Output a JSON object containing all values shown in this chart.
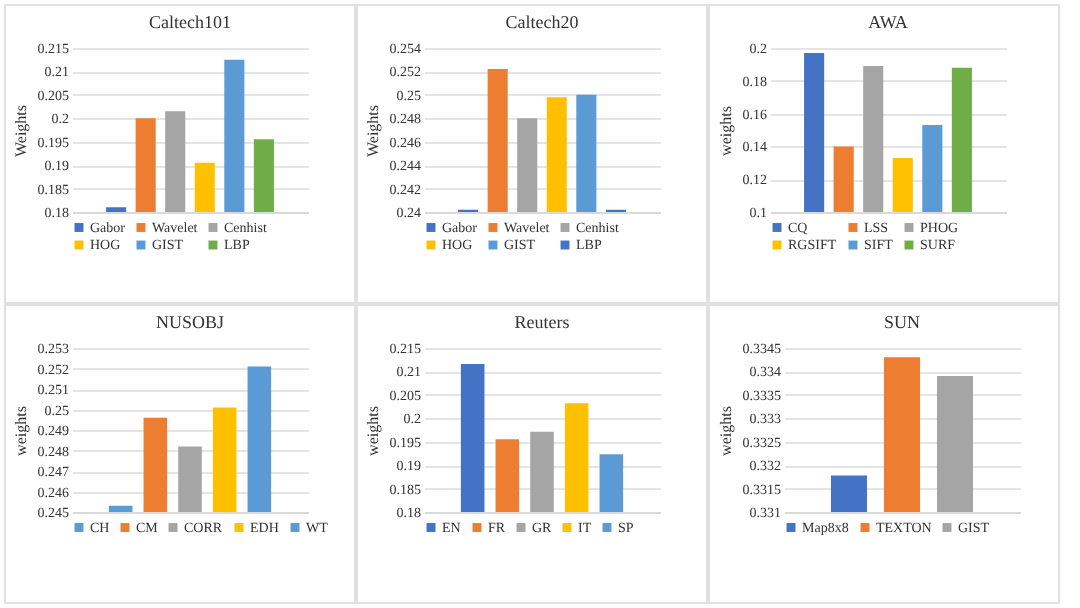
{
  "chart_data": [
    {
      "type": "bar",
      "title": "Caltech101",
      "ylabel": "Weights",
      "categories": [
        null
      ],
      "series": [
        {
          "name": "Gabor",
          "color": "#4472c4",
          "values": [
            0.181
          ]
        },
        {
          "name": "Wavelet",
          "color": "#ed7d31",
          "values": [
            0.2
          ]
        },
        {
          "name": "Cenhist",
          "color": "#a5a5a5",
          "values": [
            0.2015
          ]
        },
        {
          "name": "HOG",
          "color": "#ffc000",
          "values": [
            0.1905
          ]
        },
        {
          "name": "GIST",
          "color": "#5b9bd5",
          "values": [
            0.2125
          ]
        },
        {
          "name": "LBP",
          "color": "#70ad47",
          "values": [
            0.1955
          ]
        }
      ],
      "ylim": [
        0.18,
        0.215
      ],
      "yticks": [
        0.18,
        0.185,
        0.19,
        0.195,
        0.2,
        0.205,
        0.21,
        0.215
      ],
      "grid": "y",
      "legend": "bottom",
      "tick_labels": "y"
    },
    {
      "type": "bar",
      "title": "Caltech20",
      "ylabel": "Weights",
      "categories": [
        null
      ],
      "series": [
        {
          "name": "Gabor",
          "color": "#4472c4",
          "values": [
            0.2402
          ]
        },
        {
          "name": "Wavelet",
          "color": "#ed7d31",
          "values": [
            0.2522
          ]
        },
        {
          "name": "Cenhist",
          "color": "#a5a5a5",
          "values": [
            0.248
          ]
        },
        {
          "name": "HOG",
          "color": "#ffc000",
          "values": [
            0.2498
          ]
        },
        {
          "name": "GIST",
          "color": "#5b9bd5",
          "values": [
            0.25
          ]
        },
        {
          "name": "LBP",
          "color": "#4472c4",
          "values": [
            0.2402
          ]
        }
      ],
      "ylim": [
        0.24,
        0.254
      ],
      "yticks": [
        0.24,
        0.242,
        0.244,
        0.246,
        0.248,
        0.25,
        0.252,
        0.254
      ],
      "grid": "y",
      "legend": "bottom",
      "tick_labels": "y"
    },
    {
      "type": "bar",
      "title": "AWA",
      "ylabel": "weights",
      "categories": [
        null
      ],
      "series": [
        {
          "name": "CQ",
          "color": "#4472c4",
          "values": [
            0.197
          ]
        },
        {
          "name": "LSS",
          "color": "#ed7d31",
          "values": [
            0.14
          ]
        },
        {
          "name": "PHOG",
          "color": "#a5a5a5",
          "values": [
            0.189
          ]
        },
        {
          "name": "RGSIFT",
          "color": "#ffc000",
          "values": [
            0.133
          ]
        },
        {
          "name": "SIFT",
          "color": "#5b9bd5",
          "values": [
            0.153
          ]
        },
        {
          "name": "SURF",
          "color": "#70ad47",
          "values": [
            0.188
          ]
        }
      ],
      "ylim": [
        0.1,
        0.2
      ],
      "yticks": [
        0.1,
        0.12,
        0.14,
        0.16,
        0.18,
        0.2
      ],
      "grid": "y",
      "legend": "bottom",
      "tick_labels": "y"
    },
    {
      "type": "bar",
      "title": "NUSOBJ",
      "ylabel": "weights",
      "categories": [
        null
      ],
      "series": [
        {
          "name": "CH",
          "color": "#5b9bd5",
          "values": [
            0.2453
          ]
        },
        {
          "name": "CM",
          "color": "#ed7d31",
          "values": [
            0.2496
          ]
        },
        {
          "name": "CORR",
          "color": "#a5a5a5",
          "values": [
            0.2482
          ]
        },
        {
          "name": "EDH",
          "color": "#ffc000",
          "values": [
            0.2501
          ]
        },
        {
          "name": "WT",
          "color": "#5b9bd5",
          "values": [
            0.2521
          ]
        }
      ],
      "ylim": [
        0.245,
        0.253
      ],
      "yticks": [
        0.245,
        0.246,
        0.247,
        0.248,
        0.249,
        0.25,
        0.251,
        0.252,
        0.253
      ],
      "grid": "y",
      "legend": "bottom",
      "tick_labels": "y"
    },
    {
      "type": "bar",
      "title": "Reuters",
      "ylabel": "weights",
      "categories": [
        null
      ],
      "series": [
        {
          "name": "EN",
          "color": "#4472c4",
          "values": [
            0.2116
          ]
        },
        {
          "name": "FR",
          "color": "#ed7d31",
          "values": [
            0.1955
          ]
        },
        {
          "name": "GR",
          "color": "#a5a5a5",
          "values": [
            0.1971
          ]
        },
        {
          "name": "IT",
          "color": "#ffc000",
          "values": [
            0.2032
          ]
        },
        {
          "name": "SP",
          "color": "#5b9bd5",
          "values": [
            0.1923
          ]
        }
      ],
      "ylim": [
        0.18,
        0.215
      ],
      "yticks": [
        0.18,
        0.185,
        0.19,
        0.195,
        0.2,
        0.205,
        0.21,
        0.215
      ],
      "grid": "y",
      "legend": "bottom",
      "tick_labels": "y"
    },
    {
      "type": "bar",
      "title": "SUN",
      "ylabel": "weights",
      "categories": [
        null
      ],
      "series": [
        {
          "name": "Map8x8",
          "color": "#4472c4",
          "values": [
            0.33178
          ]
        },
        {
          "name": "TEXTON",
          "color": "#ed7d31",
          "values": [
            0.3343
          ]
        },
        {
          "name": "GIST",
          "color": "#a5a5a5",
          "values": [
            0.3339
          ]
        }
      ],
      "ylim": [
        0.331,
        0.3345
      ],
      "yticks": [
        0.331,
        0.3315,
        0.332,
        0.3325,
        0.333,
        0.3335,
        0.334,
        0.3345
      ],
      "grid": "y",
      "legend": "bottom",
      "tick_labels": "y"
    }
  ]
}
